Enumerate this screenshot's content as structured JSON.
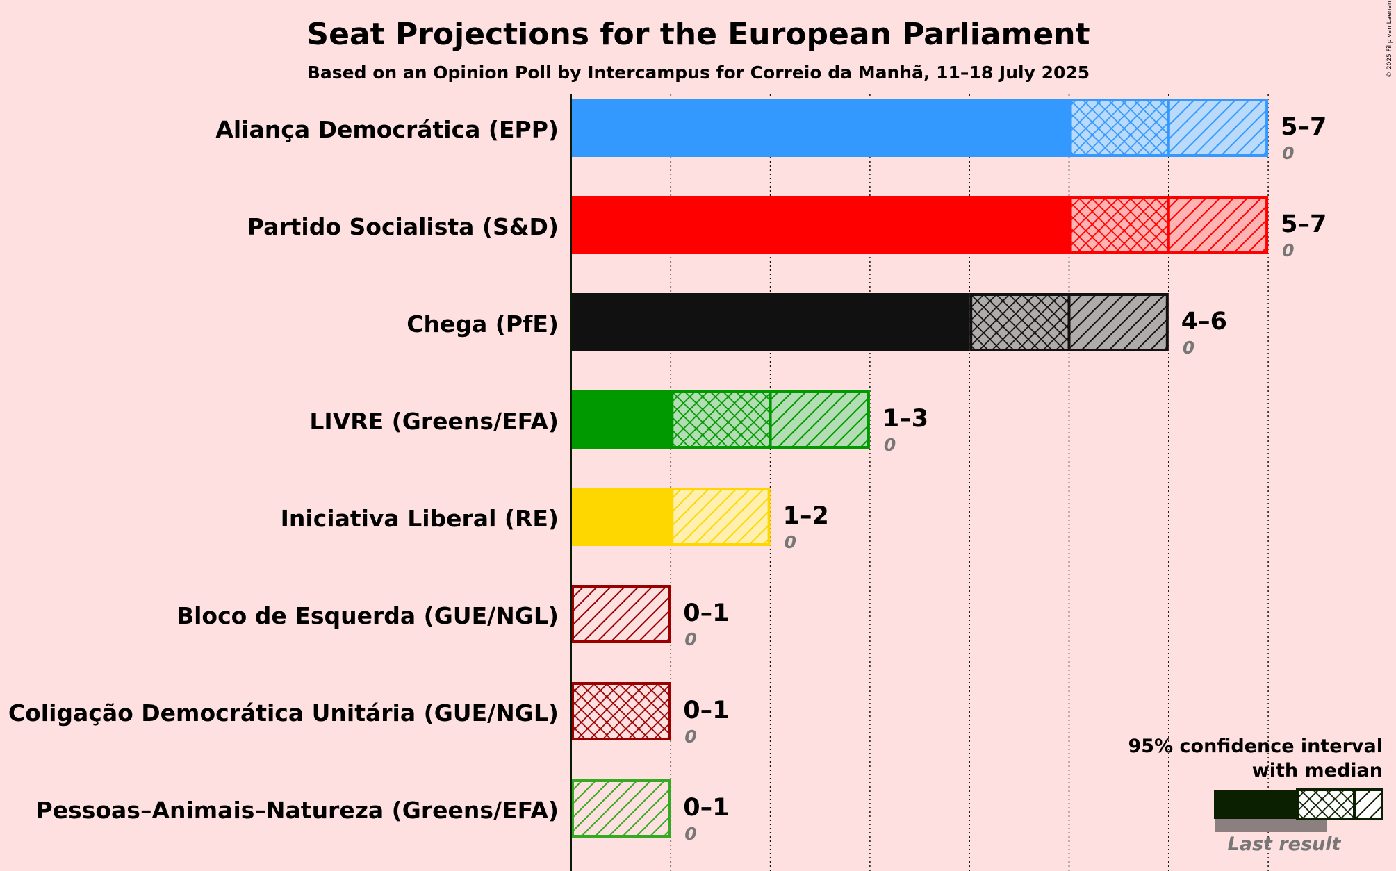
{
  "title": "Seat Projections for the European Parliament",
  "subtitle": "Based on an Opinion Poll by Intercampus for Correio da Manhã, 11–18 July 2025",
  "copyright": "© 2025 Filip van Laenen",
  "legend": {
    "line1": "95% confidence interval",
    "line2": "with median",
    "last_result": "Last result"
  },
  "chart_data": {
    "type": "bar",
    "orientation": "horizontal",
    "title": "Seat Projections for the European Parliament",
    "subtitle": "Based on an Opinion Poll by Intercampus for Correio da Manhã, 11–18 July 2025",
    "xlim": [
      0,
      7
    ],
    "grid": true,
    "legend_position": "bottom-right",
    "series": [
      {
        "party": "Aliança Democrática (EPP)",
        "low": 5,
        "median": 6,
        "high": 7,
        "range_label": "5–7",
        "last_result": 0,
        "last_label": "0",
        "color": "#3399FF",
        "light": "#B9DAFB",
        "style": "normal"
      },
      {
        "party": "Partido Socialista (S&D)",
        "low": 5,
        "median": 6,
        "high": 7,
        "range_label": "5–7",
        "last_result": 0,
        "last_label": "0",
        "color": "#FF0000",
        "light": "#FFB3B3",
        "style": "normal"
      },
      {
        "party": "Chega (PfE)",
        "low": 4,
        "median": 5,
        "high": 6,
        "range_label": "4–6",
        "last_result": 0,
        "last_label": "0",
        "color": "#111111",
        "light": "#B0ABAB",
        "style": "normal"
      },
      {
        "party": "LIVRE (Greens/EFA)",
        "low": 1,
        "median": 2,
        "high": 3,
        "range_label": "1–3",
        "last_result": 0,
        "last_label": "0",
        "color": "#009900",
        "light": "#B3DDB3",
        "style": "normal"
      },
      {
        "party": "Iniciativa Liberal (RE)",
        "low": 1,
        "median": 1,
        "high": 2,
        "range_label": "1–2",
        "last_result": 0,
        "last_label": "0",
        "color": "#FFD700",
        "light": "#FFF0B0",
        "style": "normal"
      },
      {
        "party": "Bloco de Esquerda (GUE/NGL)",
        "low": 0,
        "median": 0,
        "high": 1,
        "range_label": "0–1",
        "last_result": 0,
        "last_label": "0",
        "color": "#990000",
        "light": "#FFE0E0",
        "style": "hatch"
      },
      {
        "party": "Coligação Democrática Unitária (GUE/NGL)",
        "low": 0,
        "median": 1,
        "high": 1,
        "range_label": "0–1",
        "last_result": 0,
        "last_label": "0",
        "color": "#990000",
        "light": "#FFE0E0",
        "style": "cross"
      },
      {
        "party": "Pessoas–Animais–Natureza (Greens/EFA)",
        "low": 0,
        "median": 0,
        "high": 1,
        "range_label": "0–1",
        "last_result": 0,
        "last_label": "0",
        "color": "#33AA22",
        "light": "#FFE0E0",
        "style": "hatch"
      }
    ]
  }
}
